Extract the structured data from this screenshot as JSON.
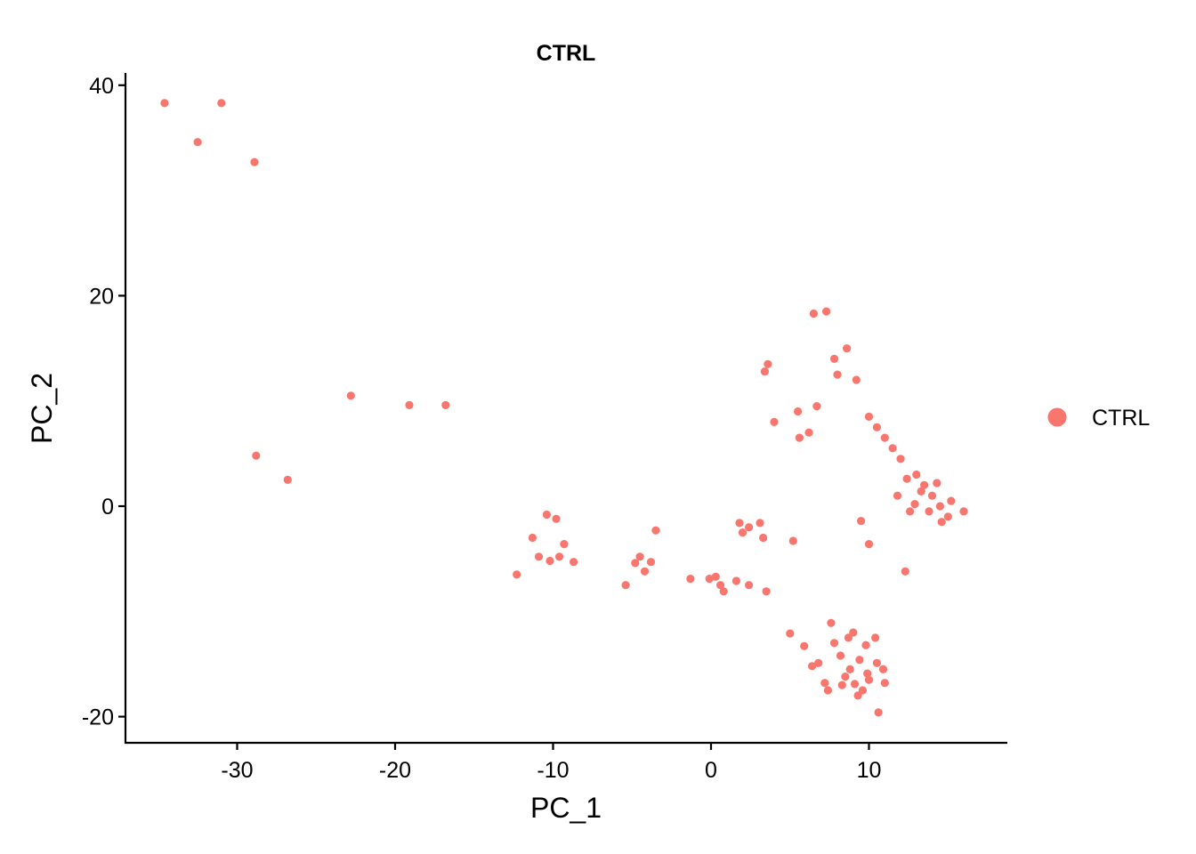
{
  "chart_data": {
    "type": "scatter",
    "title": "CTRL",
    "xlabel": "PC_1",
    "ylabel": "PC_2",
    "xlim": [
      -37.5,
      18.5
    ],
    "ylim": [
      -22.5,
      41.5
    ],
    "xticks": [
      -30,
      -20,
      -10,
      0,
      10
    ],
    "yticks": [
      -20,
      0,
      20,
      40
    ],
    "grid": false,
    "legend_position": "right",
    "series": [
      {
        "name": "CTRL",
        "color": "#F8766D",
        "points": [
          [
            -34.6,
            38.3
          ],
          [
            -31.0,
            38.3
          ],
          [
            -32.5,
            34.6
          ],
          [
            -28.9,
            32.7
          ],
          [
            -22.8,
            10.5
          ],
          [
            -19.1,
            9.6
          ],
          [
            -16.8,
            9.6
          ],
          [
            -28.8,
            4.8
          ],
          [
            -26.8,
            2.5
          ],
          [
            -12.3,
            -6.5
          ],
          [
            -11.3,
            -3.0
          ],
          [
            -10.4,
            -0.8
          ],
          [
            -9.8,
            -1.2
          ],
          [
            -10.9,
            -4.8
          ],
          [
            -10.2,
            -5.2
          ],
          [
            -9.3,
            -3.6
          ],
          [
            -9.6,
            -4.8
          ],
          [
            -8.7,
            -5.3
          ],
          [
            -5.4,
            -7.5
          ],
          [
            -4.8,
            -5.4
          ],
          [
            -4.5,
            -4.8
          ],
          [
            -4.2,
            -6.2
          ],
          [
            -3.8,
            -5.3
          ],
          [
            -3.5,
            -2.3
          ],
          [
            -1.3,
            -6.9
          ],
          [
            -0.1,
            -6.9
          ],
          [
            0.3,
            -6.7
          ],
          [
            0.6,
            -7.5
          ],
          [
            0.8,
            -8.1
          ],
          [
            1.6,
            -7.1
          ],
          [
            2.4,
            -7.5
          ],
          [
            3.5,
            -8.1
          ],
          [
            1.8,
            -1.6
          ],
          [
            2.0,
            -2.5
          ],
          [
            2.4,
            -2.0
          ],
          [
            3.1,
            -1.6
          ],
          [
            3.3,
            -3.0
          ],
          [
            5.2,
            -3.3
          ],
          [
            9.5,
            -1.4
          ],
          [
            10.0,
            -3.6
          ],
          [
            12.3,
            -6.2
          ],
          [
            7.8,
            14.0
          ],
          [
            8.0,
            12.5
          ],
          [
            8.6,
            15.0
          ],
          [
            9.2,
            12.0
          ],
          [
            7.3,
            18.5
          ],
          [
            6.5,
            18.3
          ],
          [
            4.0,
            8.0
          ],
          [
            5.5,
            9.0
          ],
          [
            6.7,
            9.5
          ],
          [
            5.6,
            6.5
          ],
          [
            6.2,
            7.0
          ],
          [
            3.6,
            13.5
          ],
          [
            3.4,
            12.8
          ],
          [
            5.0,
            -12.1
          ],
          [
            5.9,
            -13.3
          ],
          [
            6.4,
            -15.2
          ],
          [
            6.8,
            -14.9
          ],
          [
            7.2,
            -16.8
          ],
          [
            7.4,
            -17.5
          ],
          [
            7.6,
            -11.1
          ],
          [
            7.8,
            -13.0
          ],
          [
            8.3,
            -17.0
          ],
          [
            8.7,
            -12.5
          ],
          [
            9.0,
            -12.0
          ],
          [
            9.3,
            -18.0
          ],
          [
            9.6,
            -17.5
          ],
          [
            10.0,
            -16.5
          ],
          [
            10.6,
            -19.6
          ],
          [
            10.9,
            -15.5
          ],
          [
            11.0,
            -16.8
          ],
          [
            9.8,
            -13.2
          ],
          [
            10.4,
            -12.5
          ],
          [
            8.2,
            -14.2
          ],
          [
            8.8,
            -15.5
          ],
          [
            9.4,
            -14.6
          ],
          [
            9.9,
            -15.9
          ],
          [
            10.5,
            -14.9
          ],
          [
            8.5,
            -16.2
          ],
          [
            9.1,
            -16.9
          ],
          [
            13.0,
            3.0
          ],
          [
            13.5,
            2.0
          ],
          [
            14.0,
            1.0
          ],
          [
            14.5,
            0.0
          ],
          [
            15.0,
            -1.0
          ],
          [
            12.0,
            4.5
          ],
          [
            11.5,
            5.5
          ],
          [
            11.0,
            6.5
          ],
          [
            10.5,
            7.5
          ],
          [
            10.0,
            8.5
          ],
          [
            13.8,
            -0.5
          ],
          [
            14.6,
            -1.5
          ],
          [
            15.2,
            0.5
          ],
          [
            16.0,
            -0.5
          ],
          [
            12.6,
            -0.5
          ],
          [
            11.8,
            1.0
          ],
          [
            12.9,
            0.2
          ],
          [
            13.3,
            1.4
          ],
          [
            14.3,
            2.2
          ],
          [
            12.4,
            2.6
          ]
        ]
      }
    ]
  }
}
